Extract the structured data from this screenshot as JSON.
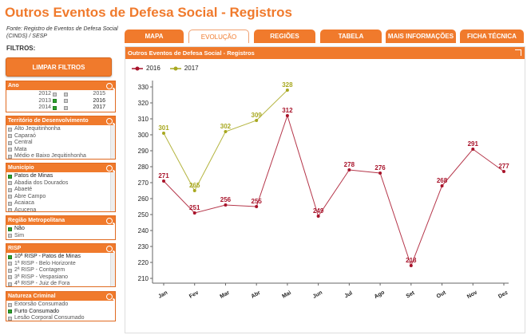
{
  "page": {
    "title": "Outros Eventos de Defesa Social - Registros",
    "source": "Fonte: Registro de Eventos de Defesa Social (CINDS) / SESP",
    "filters_label": "FILTROS:",
    "clear_button": "LIMPAR FILTROS"
  },
  "filters": {
    "ano": {
      "title": "Ano",
      "years": [
        {
          "left": "2012",
          "left_on": false,
          "right": "2015"
        },
        {
          "left": "2013",
          "left_on": true,
          "right": "2016"
        },
        {
          "left": "2014",
          "left_on": true,
          "right": "2017"
        }
      ]
    },
    "territorio": {
      "title": "Território de Desenvolvimento",
      "items": [
        {
          "label": "Alto Jequitinhonha",
          "on": false
        },
        {
          "label": "Caparaó",
          "on": false
        },
        {
          "label": "Central",
          "on": false
        },
        {
          "label": "Mata",
          "on": false
        },
        {
          "label": "Médio e Baixo Jequitinhonha",
          "on": false
        }
      ]
    },
    "municipio": {
      "title": "Município",
      "items": [
        {
          "label": "Patos de Minas",
          "on": true
        },
        {
          "label": "Abadia dos Dourados",
          "on": false
        },
        {
          "label": "Abaeté",
          "on": false
        },
        {
          "label": "Abre Campo",
          "on": false
        },
        {
          "label": "Acaiaca",
          "on": false
        },
        {
          "label": "Açucena",
          "on": false
        }
      ]
    },
    "regiao": {
      "title": "Região Metropolitana",
      "items": [
        {
          "label": "Não",
          "on": true
        },
        {
          "label": "Sim",
          "on": false
        }
      ]
    },
    "risp": {
      "title": "RISP",
      "items": [
        {
          "label": "10ª RISP - Patos de Minas",
          "on": true
        },
        {
          "label": "1ª RISP - Belo Horizonte",
          "on": false
        },
        {
          "label": "2ª RISP - Contagem",
          "on": false
        },
        {
          "label": "3ª RISP - Vespasiano",
          "on": false
        },
        {
          "label": "4ª RISP - Juiz de Fora",
          "on": false
        }
      ]
    },
    "natureza": {
      "title": "Natureza Criminal",
      "items": [
        {
          "label": "Extorsão Consumado",
          "on": false
        },
        {
          "label": "Furto Consumado",
          "on": true
        },
        {
          "label": "Lesão Corporal Consumado",
          "on": false
        }
      ]
    }
  },
  "tabs": [
    {
      "label": "MAPA",
      "active": false
    },
    {
      "label": "EVOLUÇÃO",
      "active": true
    },
    {
      "label": "REGIÕES",
      "active": false
    },
    {
      "label": "TABELA",
      "active": false
    },
    {
      "label": "MAIS INFORMAÇÕES",
      "active": false
    },
    {
      "label": "FICHA TÉCNICA",
      "active": false
    }
  ],
  "panel": {
    "title": "Outros Eventos de Defesa Social - Registros"
  },
  "chart_data": {
    "type": "line",
    "title": "Outros Eventos de Defesa Social - Registros",
    "categories": [
      "Jan",
      "Fev",
      "Mar",
      "Abr",
      "Mai",
      "Jun",
      "Jul",
      "Ago",
      "Set",
      "Out",
      "Nov",
      "Dez"
    ],
    "series": [
      {
        "name": "2016",
        "color": "#a8132a",
        "values": [
          271,
          251,
          256,
          255,
          312,
          249,
          278,
          276,
          218,
          268,
          291,
          277
        ]
      },
      {
        "name": "2017",
        "color": "#a8a820",
        "values": [
          301,
          265,
          302,
          309,
          328,
          null,
          null,
          null,
          null,
          null,
          null,
          null
        ]
      }
    ],
    "yticks": [
      210,
      220,
      230,
      240,
      250,
      260,
      270,
      280,
      290,
      300,
      310,
      320,
      330
    ],
    "ylim": [
      207,
      334
    ],
    "grid": false,
    "legend": "top-left"
  }
}
